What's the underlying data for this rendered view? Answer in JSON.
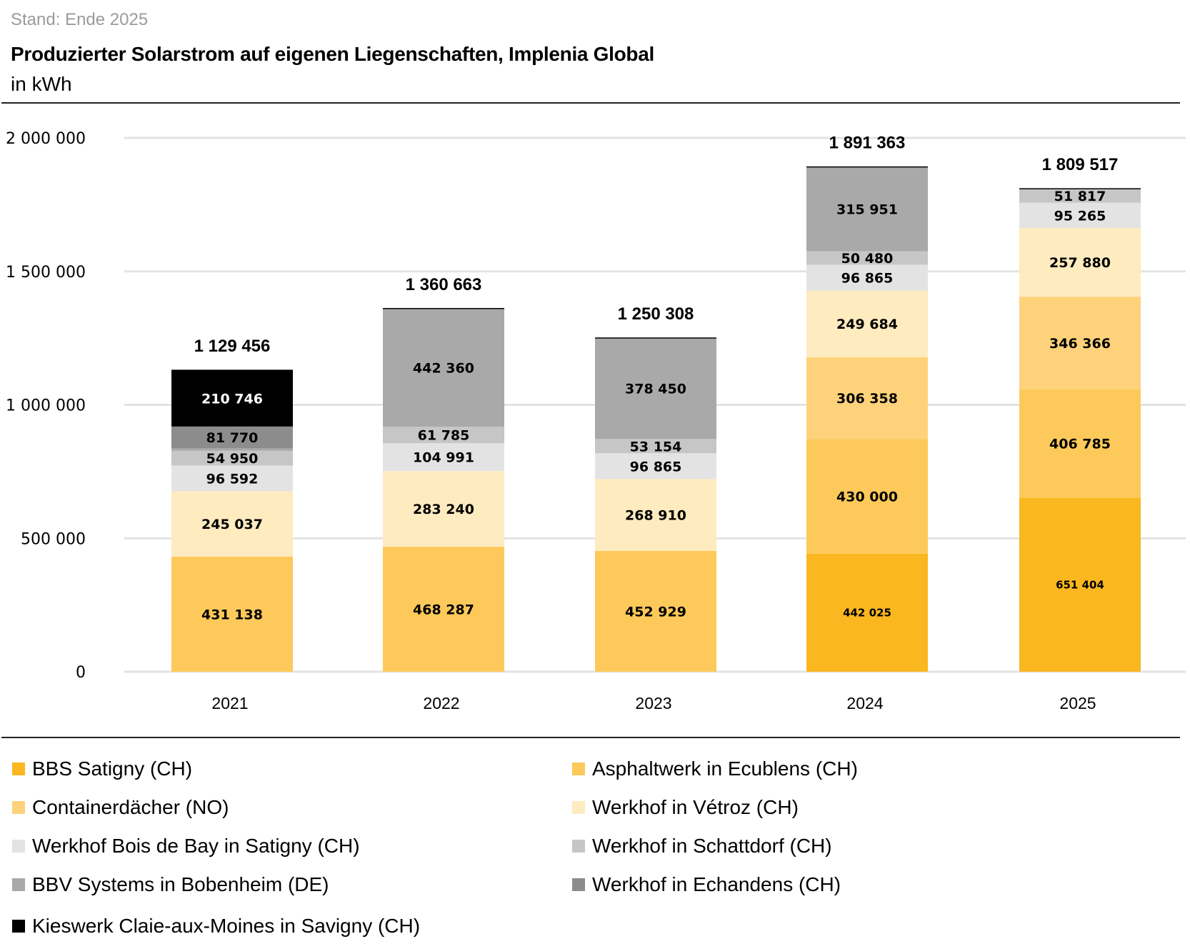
{
  "header": {
    "stand": "Stand: Ende 2025",
    "title": "Produzierter Solarstrom auf eigenen Liegenschaften, Implenia Global",
    "unit": "in kWh"
  },
  "chart_data": {
    "type": "bar",
    "stacked": true,
    "title": "Produzierter Solarstrom auf eigenen Liegenschaften, Implenia Global",
    "subtitle": "in kWh",
    "xlabel": "",
    "ylabel": "kWh",
    "ylim": [
      0,
      2000000
    ],
    "yticks": [
      0,
      500000,
      1000000,
      1500000,
      2000000
    ],
    "ytick_labels": [
      "0",
      "500 000",
      "1 000 000",
      "1 500 000",
      "2 000 000"
    ],
    "grid": true,
    "legend_position": "bottom",
    "categories": [
      "2021",
      "2022",
      "2023",
      "2024",
      "2025"
    ],
    "totals": [
      1129456,
      1360663,
      1250308,
      1891363,
      1809517
    ],
    "total_labels": [
      "1 129 456",
      "1 360 663",
      "1 250 308",
      "1 891 363",
      "1 809 517"
    ],
    "series": [
      {
        "name": "BBS Satigny (CH)",
        "color": "#FBB71F",
        "values": [
          0,
          0,
          0,
          442025,
          651404
        ],
        "labels": [
          "",
          "",
          "",
          "442 025",
          "651 404"
        ]
      },
      {
        "name": "Asphaltwerk in Ecublens (CH)",
        "color": "#FDC95A",
        "values": [
          431138,
          468287,
          452929,
          430000,
          406785
        ],
        "labels": [
          "431 138",
          "468 287",
          "452 929",
          "430 000",
          "406 785"
        ]
      },
      {
        "name": "Containerdächer (NO)",
        "color": "#FDD27A",
        "values": [
          0,
          0,
          0,
          306358,
          346366
        ],
        "labels": [
          "",
          "",
          "",
          "306 358",
          "346 366"
        ]
      },
      {
        "name": "Werkhof in Vétroz (CH)",
        "color": "#FEEBBF",
        "values": [
          245037,
          283240,
          268910,
          249684,
          257880
        ],
        "labels": [
          "245 037",
          "283 240",
          "268 910",
          "249 684",
          "257 880"
        ]
      },
      {
        "name": "Werkhof Bois de Bay in Satigny (CH)",
        "color": "#E3E3E3",
        "values": [
          96592,
          104991,
          96865,
          96865,
          95265
        ],
        "labels": [
          "96 592",
          "104 991",
          "96 865",
          "96 865",
          "95 265"
        ]
      },
      {
        "name": "Werkhof in Schattdorf (CH)",
        "color": "#C6C6C6",
        "values": [
          54950,
          61785,
          53154,
          50480,
          51817
        ],
        "labels": [
          "54 950",
          "61 785",
          "53 154",
          "50 480",
          "51 817"
        ]
      },
      {
        "name": "BBV Systems in Bobenheim (DE)",
        "color": "#A9A9A9",
        "values": [
          9223,
          442360,
          378450,
          315951,
          0
        ],
        "labels": [
          "",
          "442 360",
          "378 450",
          "315 951",
          ""
        ]
      },
      {
        "name": "Werkhof in Echandens (CH)",
        "color": "#8C8C8C",
        "values": [
          81770,
          0,
          0,
          0,
          0
        ],
        "labels": [
          "81 770",
          "",
          "",
          "",
          ""
        ]
      },
      {
        "name": "Kieswerk Claie-aux-Moines in Savigny (CH)",
        "color": "#000000",
        "values": [
          210746,
          0,
          0,
          0,
          0
        ],
        "labels": [
          "210 746",
          "",
          "",
          "",
          ""
        ]
      }
    ]
  },
  "legend": [
    {
      "label": "BBS Satigny (CH)",
      "color": "#FBB71F"
    },
    {
      "label": "Asphaltwerk in Ecublens (CH)",
      "color": "#FDC95A"
    },
    {
      "label": "Containerdächer (NO)",
      "color": "#FDD27A"
    },
    {
      "label": "Werkhof in Vétroz (CH)",
      "color": "#FEEBBF"
    },
    {
      "label": "Werkhof Bois de Bay in Satigny (CH)",
      "color": "#E3E3E3"
    },
    {
      "label": "Werkhof in Schattdorf (CH)",
      "color": "#C6C6C6"
    },
    {
      "label": "BBV Systems in Bobenheim (DE)",
      "color": "#A9A9A9"
    },
    {
      "label": "Werkhof in Echandens (CH)",
      "color": "#8C8C8C"
    },
    {
      "label": "Kieswerk Claie-aux-Moines in Savigny (CH)",
      "color": "#000000"
    }
  ]
}
